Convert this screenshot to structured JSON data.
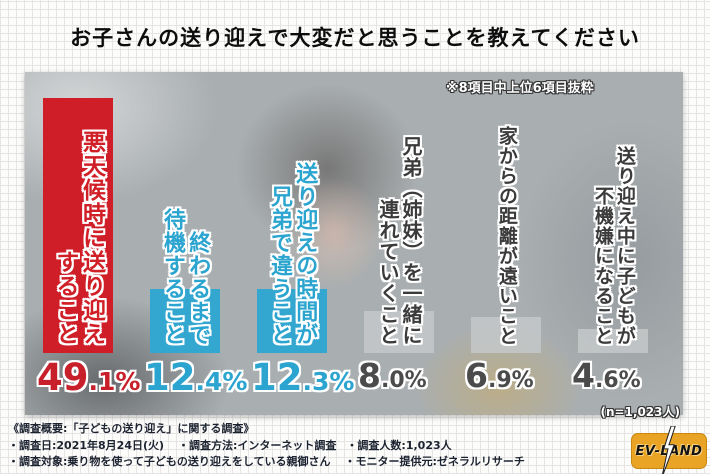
{
  "title": "お子さんの送り迎えで大変だと思うことを教えてください",
  "chart_data": {
    "type": "bar",
    "title": "お子さんの送り迎えで大変だと思うことを教えてください",
    "note": "※8項目中上位6項目抜粋",
    "sample_size": "(n=1,023人)",
    "unit": "%",
    "ylim": [
      0,
      50
    ],
    "categories": [
      "悪天候時に送り迎えすること",
      "終わるまで待機すること",
      "送り迎えの時間が兄弟で違うこと",
      "兄弟（姉妹）を一緒に連れていくこと",
      "家からの距離が遠いこと",
      "送り迎え中に子どもが不機嫌になること"
    ],
    "labels_vertical": [
      "悪天候時に送り迎え\nすること",
      "終わるまで\n待機すること",
      "送り迎えの時間が\n兄弟で違うこと",
      "兄弟（姉妹）を一緒に\n連れていくこと",
      "家からの距離が遠いこと",
      "送り迎え中に子どもが\n不機嫌になること"
    ],
    "values": [
      49.1,
      12.4,
      12.3,
      8.0,
      6.9,
      4.6
    ],
    "styles": [
      "red",
      "blue",
      "blue",
      "gray",
      "gray",
      "gray"
    ],
    "colors": {
      "red": "#d01e28",
      "blue": "#34a7d0",
      "gray": "#c6c9cb"
    }
  },
  "footer": {
    "line1": "《調査概要:「子どもの送り迎え」に関する調査》",
    "line2a": "・調査日:2021年8月24日(火)",
    "line2b": "・調査方法:インターネット調査",
    "line2c": "・調査人数:1,023人",
    "line3a": "・調査対象:乗り物を使って子どもの送り迎えをしている親御さん",
    "line3b": "・モニター提供元:ゼネラルリサーチ"
  },
  "logo": {
    "text": "EV-LAND"
  }
}
